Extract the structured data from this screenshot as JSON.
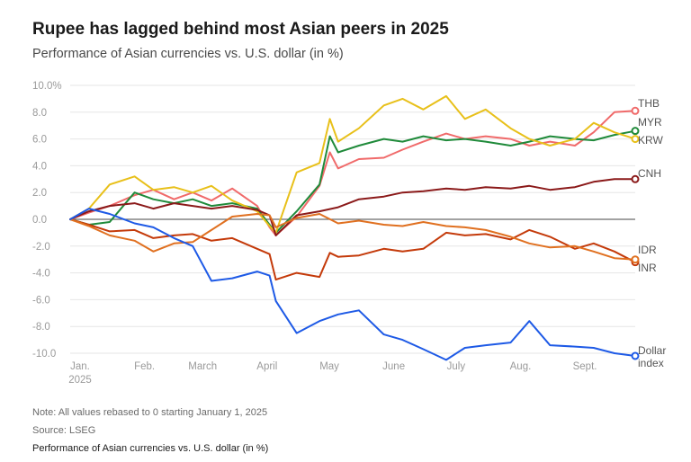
{
  "header": {
    "title": "Rupee has lagged behind most Asian peers in 2025",
    "subtitle": "Performance of Asian currencies vs. U.S. dollar (in %)"
  },
  "footer": {
    "note": "Note: All values rebased to 0 starting January 1, 2025",
    "source": "Source: LSEG",
    "caption": "Performance of Asian currencies vs. U.S. dollar (in %)"
  },
  "chart_data": {
    "type": "line",
    "title": "Rupee has lagged behind most Asian peers in 2025",
    "subtitle": "Performance of Asian currencies vs. U.S. dollar (in %)",
    "xlabel": "",
    "ylabel": "",
    "ylim": [
      -10,
      10
    ],
    "xlim": [
      "2025-01-01",
      "2025-09-30"
    ],
    "y_ticks": [
      10,
      8,
      6,
      4,
      2,
      0,
      -2,
      -4,
      -6,
      -8,
      -10
    ],
    "y_tick_labels": [
      "10.0%",
      "8.0",
      "6.0",
      "4.0",
      "2.0",
      "0.0",
      "-2.0",
      "-4.0",
      "-6.0",
      "-8.0",
      "-10.0"
    ],
    "x_ticks": [
      "2025-01-01",
      "2025-02-01",
      "2025-03-01",
      "2025-04-01",
      "2025-05-01",
      "2025-06-01",
      "2025-07-01",
      "2025-08-01",
      "2025-09-01"
    ],
    "x_tick_labels": [
      "Jan.\n2025",
      "Feb.",
      "March",
      "April",
      "May",
      "June",
      "July",
      "Aug.",
      "Sept."
    ],
    "grid": "horizontal",
    "legend": "direct labels at line ends (right)",
    "series": [
      {
        "name": "THB",
        "color": "#f06a6a",
        "x": [
          "2025-01-01",
          "2025-01-10",
          "2025-01-20",
          "2025-02-01",
          "2025-02-10",
          "2025-02-20",
          "2025-03-01",
          "2025-03-10",
          "2025-03-20",
          "2025-04-01",
          "2025-04-07",
          "2025-04-10",
          "2025-04-20",
          "2025-05-01",
          "2025-05-06",
          "2025-05-10",
          "2025-05-20",
          "2025-06-01",
          "2025-06-10",
          "2025-06-20",
          "2025-07-01",
          "2025-07-10",
          "2025-07-20",
          "2025-08-01",
          "2025-08-10",
          "2025-08-20",
          "2025-09-01",
          "2025-09-10",
          "2025-09-20",
          "2025-09-30"
        ],
        "y": [
          0,
          0.5,
          1.0,
          1.8,
          2.2,
          1.5,
          2.0,
          1.4,
          2.3,
          1.0,
          -0.6,
          -1.2,
          0.2,
          2.5,
          5.0,
          3.8,
          4.5,
          4.6,
          5.2,
          5.8,
          6.4,
          6.0,
          6.2,
          6.0,
          5.5,
          5.8,
          5.5,
          6.5,
          8.0,
          8.1
        ]
      },
      {
        "name": "MYR",
        "color": "#1f8a3a",
        "x": [
          "2025-01-01",
          "2025-01-10",
          "2025-01-20",
          "2025-02-01",
          "2025-02-10",
          "2025-02-20",
          "2025-03-01",
          "2025-03-10",
          "2025-03-20",
          "2025-04-01",
          "2025-04-07",
          "2025-04-10",
          "2025-04-20",
          "2025-05-01",
          "2025-05-06",
          "2025-05-10",
          "2025-05-20",
          "2025-06-01",
          "2025-06-10",
          "2025-06-20",
          "2025-07-01",
          "2025-07-10",
          "2025-07-20",
          "2025-08-01",
          "2025-08-10",
          "2025-08-20",
          "2025-09-01",
          "2025-09-10",
          "2025-09-20",
          "2025-09-30"
        ],
        "y": [
          0,
          -0.4,
          -0.2,
          2.0,
          1.5,
          1.2,
          1.5,
          1.0,
          1.2,
          0.8,
          -0.4,
          -1.0,
          0.6,
          2.6,
          6.2,
          5.0,
          5.5,
          6.0,
          5.8,
          6.2,
          5.9,
          6.0,
          5.8,
          5.5,
          5.8,
          6.2,
          6.0,
          5.9,
          6.3,
          6.6
        ]
      },
      {
        "name": "KRW",
        "color": "#e8c01a",
        "x": [
          "2025-01-01",
          "2025-01-10",
          "2025-01-20",
          "2025-02-01",
          "2025-02-10",
          "2025-02-20",
          "2025-03-01",
          "2025-03-10",
          "2025-03-20",
          "2025-04-01",
          "2025-04-07",
          "2025-04-10",
          "2025-04-20",
          "2025-05-01",
          "2025-05-06",
          "2025-05-10",
          "2025-05-20",
          "2025-06-01",
          "2025-06-10",
          "2025-06-20",
          "2025-07-01",
          "2025-07-10",
          "2025-07-20",
          "2025-08-01",
          "2025-08-10",
          "2025-08-20",
          "2025-09-01",
          "2025-09-10",
          "2025-09-20",
          "2025-09-30"
        ],
        "y": [
          0,
          0.8,
          2.6,
          3.2,
          2.2,
          2.4,
          2.0,
          2.5,
          1.4,
          0.6,
          -0.5,
          -1.0,
          3.5,
          4.2,
          7.5,
          5.8,
          6.8,
          8.5,
          9.0,
          8.2,
          9.2,
          7.5,
          8.2,
          6.8,
          6.0,
          5.5,
          6.0,
          7.2,
          6.5,
          6.0
        ]
      },
      {
        "name": "CNH",
        "color": "#8b1a1a",
        "x": [
          "2025-01-01",
          "2025-01-10",
          "2025-01-20",
          "2025-02-01",
          "2025-02-10",
          "2025-02-20",
          "2025-03-01",
          "2025-03-10",
          "2025-03-20",
          "2025-04-01",
          "2025-04-07",
          "2025-04-10",
          "2025-04-20",
          "2025-05-01",
          "2025-05-10",
          "2025-05-20",
          "2025-06-01",
          "2025-06-10",
          "2025-06-20",
          "2025-07-01",
          "2025-07-10",
          "2025-07-20",
          "2025-08-01",
          "2025-08-10",
          "2025-08-20",
          "2025-09-01",
          "2025-09-10",
          "2025-09-20",
          "2025-09-30"
        ],
        "y": [
          0,
          0.6,
          1.0,
          1.2,
          0.8,
          1.2,
          1.0,
          0.8,
          1.0,
          0.7,
          0.3,
          -1.2,
          0.3,
          0.6,
          0.9,
          1.5,
          1.7,
          2.0,
          2.1,
          2.3,
          2.2,
          2.4,
          2.3,
          2.5,
          2.2,
          2.4,
          2.8,
          3.0,
          3.0
        ]
      },
      {
        "name": "IDR",
        "color": "#c43a0a",
        "x": [
          "2025-01-01",
          "2025-01-10",
          "2025-01-20",
          "2025-02-01",
          "2025-02-10",
          "2025-02-20",
          "2025-03-01",
          "2025-03-10",
          "2025-03-20",
          "2025-04-01",
          "2025-04-07",
          "2025-04-10",
          "2025-04-20",
          "2025-05-01",
          "2025-05-06",
          "2025-05-10",
          "2025-05-20",
          "2025-06-01",
          "2025-06-10",
          "2025-06-20",
          "2025-07-01",
          "2025-07-10",
          "2025-07-20",
          "2025-08-01",
          "2025-08-10",
          "2025-08-20",
          "2025-09-01",
          "2025-09-10",
          "2025-09-20",
          "2025-09-30"
        ],
        "y": [
          0,
          -0.4,
          -0.9,
          -0.8,
          -1.4,
          -1.2,
          -1.1,
          -1.6,
          -1.4,
          -2.2,
          -2.6,
          -4.5,
          -4.0,
          -4.3,
          -2.5,
          -2.8,
          -2.7,
          -2.2,
          -2.4,
          -2.2,
          -1.0,
          -1.2,
          -1.1,
          -1.5,
          -0.8,
          -1.3,
          -2.2,
          -1.8,
          -2.4,
          -3.2
        ]
      },
      {
        "name": "INR",
        "color": "#e07020",
        "x": [
          "2025-01-01",
          "2025-01-10",
          "2025-01-20",
          "2025-02-01",
          "2025-02-10",
          "2025-02-20",
          "2025-03-01",
          "2025-03-10",
          "2025-03-20",
          "2025-04-01",
          "2025-04-07",
          "2025-04-10",
          "2025-04-20",
          "2025-05-01",
          "2025-05-10",
          "2025-05-20",
          "2025-06-01",
          "2025-06-10",
          "2025-06-20",
          "2025-07-01",
          "2025-07-10",
          "2025-07-20",
          "2025-08-01",
          "2025-08-10",
          "2025-08-20",
          "2025-09-01",
          "2025-09-10",
          "2025-09-20",
          "2025-09-30"
        ],
        "y": [
          0,
          -0.5,
          -1.2,
          -1.6,
          -2.4,
          -1.8,
          -1.7,
          -0.8,
          0.2,
          0.4,
          0.3,
          -0.6,
          0.1,
          0.4,
          -0.3,
          -0.1,
          -0.4,
          -0.5,
          -0.2,
          -0.5,
          -0.6,
          -0.8,
          -1.3,
          -1.8,
          -2.1,
          -2.0,
          -2.4,
          -2.9,
          -3.0
        ]
      },
      {
        "name": "Dollar index",
        "color": "#1e5ae6",
        "x": [
          "2025-01-01",
          "2025-01-10",
          "2025-01-20",
          "2025-02-01",
          "2025-02-10",
          "2025-02-20",
          "2025-03-01",
          "2025-03-10",
          "2025-03-20",
          "2025-04-01",
          "2025-04-07",
          "2025-04-10",
          "2025-04-20",
          "2025-05-01",
          "2025-05-10",
          "2025-05-20",
          "2025-06-01",
          "2025-06-10",
          "2025-06-20",
          "2025-07-01",
          "2025-07-10",
          "2025-07-20",
          "2025-08-01",
          "2025-08-10",
          "2025-08-20",
          "2025-09-01",
          "2025-09-10",
          "2025-09-20",
          "2025-09-30"
        ],
        "y": [
          0,
          0.8,
          0.4,
          -0.3,
          -0.6,
          -1.4,
          -2.0,
          -4.6,
          -4.4,
          -3.9,
          -4.2,
          -6.1,
          -8.5,
          -7.6,
          -7.1,
          -6.8,
          -8.6,
          -9.0,
          -9.7,
          -10.5,
          -9.6,
          -9.4,
          -9.2,
          -7.6,
          -9.4,
          -9.5,
          -9.6,
          -10.0,
          -10.2
        ]
      }
    ]
  }
}
